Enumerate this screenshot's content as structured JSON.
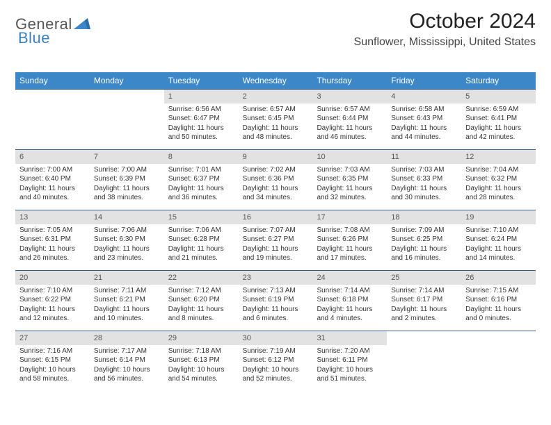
{
  "logo": {
    "part1": "General",
    "part2": "Blue"
  },
  "title": "October 2024",
  "subtitle": "Sunflower, Mississippi, United States",
  "colors": {
    "dow_bg": "#3b87c8",
    "dow_text": "#ffffff",
    "week_border": "#2f5d88",
    "daynum_bg": "#e2e2e2",
    "text": "#333333",
    "logo_blue": "#3b7fc4"
  },
  "dow": [
    "Sunday",
    "Monday",
    "Tuesday",
    "Wednesday",
    "Thursday",
    "Friday",
    "Saturday"
  ],
  "weeks": [
    [
      null,
      null,
      {
        "n": "1",
        "sr": "6:56 AM",
        "ss": "6:47 PM",
        "dl": "11 hours and 50 minutes."
      },
      {
        "n": "2",
        "sr": "6:57 AM",
        "ss": "6:45 PM",
        "dl": "11 hours and 48 minutes."
      },
      {
        "n": "3",
        "sr": "6:57 AM",
        "ss": "6:44 PM",
        "dl": "11 hours and 46 minutes."
      },
      {
        "n": "4",
        "sr": "6:58 AM",
        "ss": "6:43 PM",
        "dl": "11 hours and 44 minutes."
      },
      {
        "n": "5",
        "sr": "6:59 AM",
        "ss": "6:41 PM",
        "dl": "11 hours and 42 minutes."
      }
    ],
    [
      {
        "n": "6",
        "sr": "7:00 AM",
        "ss": "6:40 PM",
        "dl": "11 hours and 40 minutes."
      },
      {
        "n": "7",
        "sr": "7:00 AM",
        "ss": "6:39 PM",
        "dl": "11 hours and 38 minutes."
      },
      {
        "n": "8",
        "sr": "7:01 AM",
        "ss": "6:37 PM",
        "dl": "11 hours and 36 minutes."
      },
      {
        "n": "9",
        "sr": "7:02 AM",
        "ss": "6:36 PM",
        "dl": "11 hours and 34 minutes."
      },
      {
        "n": "10",
        "sr": "7:03 AM",
        "ss": "6:35 PM",
        "dl": "11 hours and 32 minutes."
      },
      {
        "n": "11",
        "sr": "7:03 AM",
        "ss": "6:33 PM",
        "dl": "11 hours and 30 minutes."
      },
      {
        "n": "12",
        "sr": "7:04 AM",
        "ss": "6:32 PM",
        "dl": "11 hours and 28 minutes."
      }
    ],
    [
      {
        "n": "13",
        "sr": "7:05 AM",
        "ss": "6:31 PM",
        "dl": "11 hours and 26 minutes."
      },
      {
        "n": "14",
        "sr": "7:06 AM",
        "ss": "6:30 PM",
        "dl": "11 hours and 23 minutes."
      },
      {
        "n": "15",
        "sr": "7:06 AM",
        "ss": "6:28 PM",
        "dl": "11 hours and 21 minutes."
      },
      {
        "n": "16",
        "sr": "7:07 AM",
        "ss": "6:27 PM",
        "dl": "11 hours and 19 minutes."
      },
      {
        "n": "17",
        "sr": "7:08 AM",
        "ss": "6:26 PM",
        "dl": "11 hours and 17 minutes."
      },
      {
        "n": "18",
        "sr": "7:09 AM",
        "ss": "6:25 PM",
        "dl": "11 hours and 16 minutes."
      },
      {
        "n": "19",
        "sr": "7:10 AM",
        "ss": "6:24 PM",
        "dl": "11 hours and 14 minutes."
      }
    ],
    [
      {
        "n": "20",
        "sr": "7:10 AM",
        "ss": "6:22 PM",
        "dl": "11 hours and 12 minutes."
      },
      {
        "n": "21",
        "sr": "7:11 AM",
        "ss": "6:21 PM",
        "dl": "11 hours and 10 minutes."
      },
      {
        "n": "22",
        "sr": "7:12 AM",
        "ss": "6:20 PM",
        "dl": "11 hours and 8 minutes."
      },
      {
        "n": "23",
        "sr": "7:13 AM",
        "ss": "6:19 PM",
        "dl": "11 hours and 6 minutes."
      },
      {
        "n": "24",
        "sr": "7:14 AM",
        "ss": "6:18 PM",
        "dl": "11 hours and 4 minutes."
      },
      {
        "n": "25",
        "sr": "7:14 AM",
        "ss": "6:17 PM",
        "dl": "11 hours and 2 minutes."
      },
      {
        "n": "26",
        "sr": "7:15 AM",
        "ss": "6:16 PM",
        "dl": "11 hours and 0 minutes."
      }
    ],
    [
      {
        "n": "27",
        "sr": "7:16 AM",
        "ss": "6:15 PM",
        "dl": "10 hours and 58 minutes."
      },
      {
        "n": "28",
        "sr": "7:17 AM",
        "ss": "6:14 PM",
        "dl": "10 hours and 56 minutes."
      },
      {
        "n": "29",
        "sr": "7:18 AM",
        "ss": "6:13 PM",
        "dl": "10 hours and 54 minutes."
      },
      {
        "n": "30",
        "sr": "7:19 AM",
        "ss": "6:12 PM",
        "dl": "10 hours and 52 minutes."
      },
      {
        "n": "31",
        "sr": "7:20 AM",
        "ss": "6:11 PM",
        "dl": "10 hours and 51 minutes."
      },
      null,
      null
    ]
  ],
  "labels": {
    "sunrise": "Sunrise:",
    "sunset": "Sunset:",
    "daylight": "Daylight:"
  }
}
